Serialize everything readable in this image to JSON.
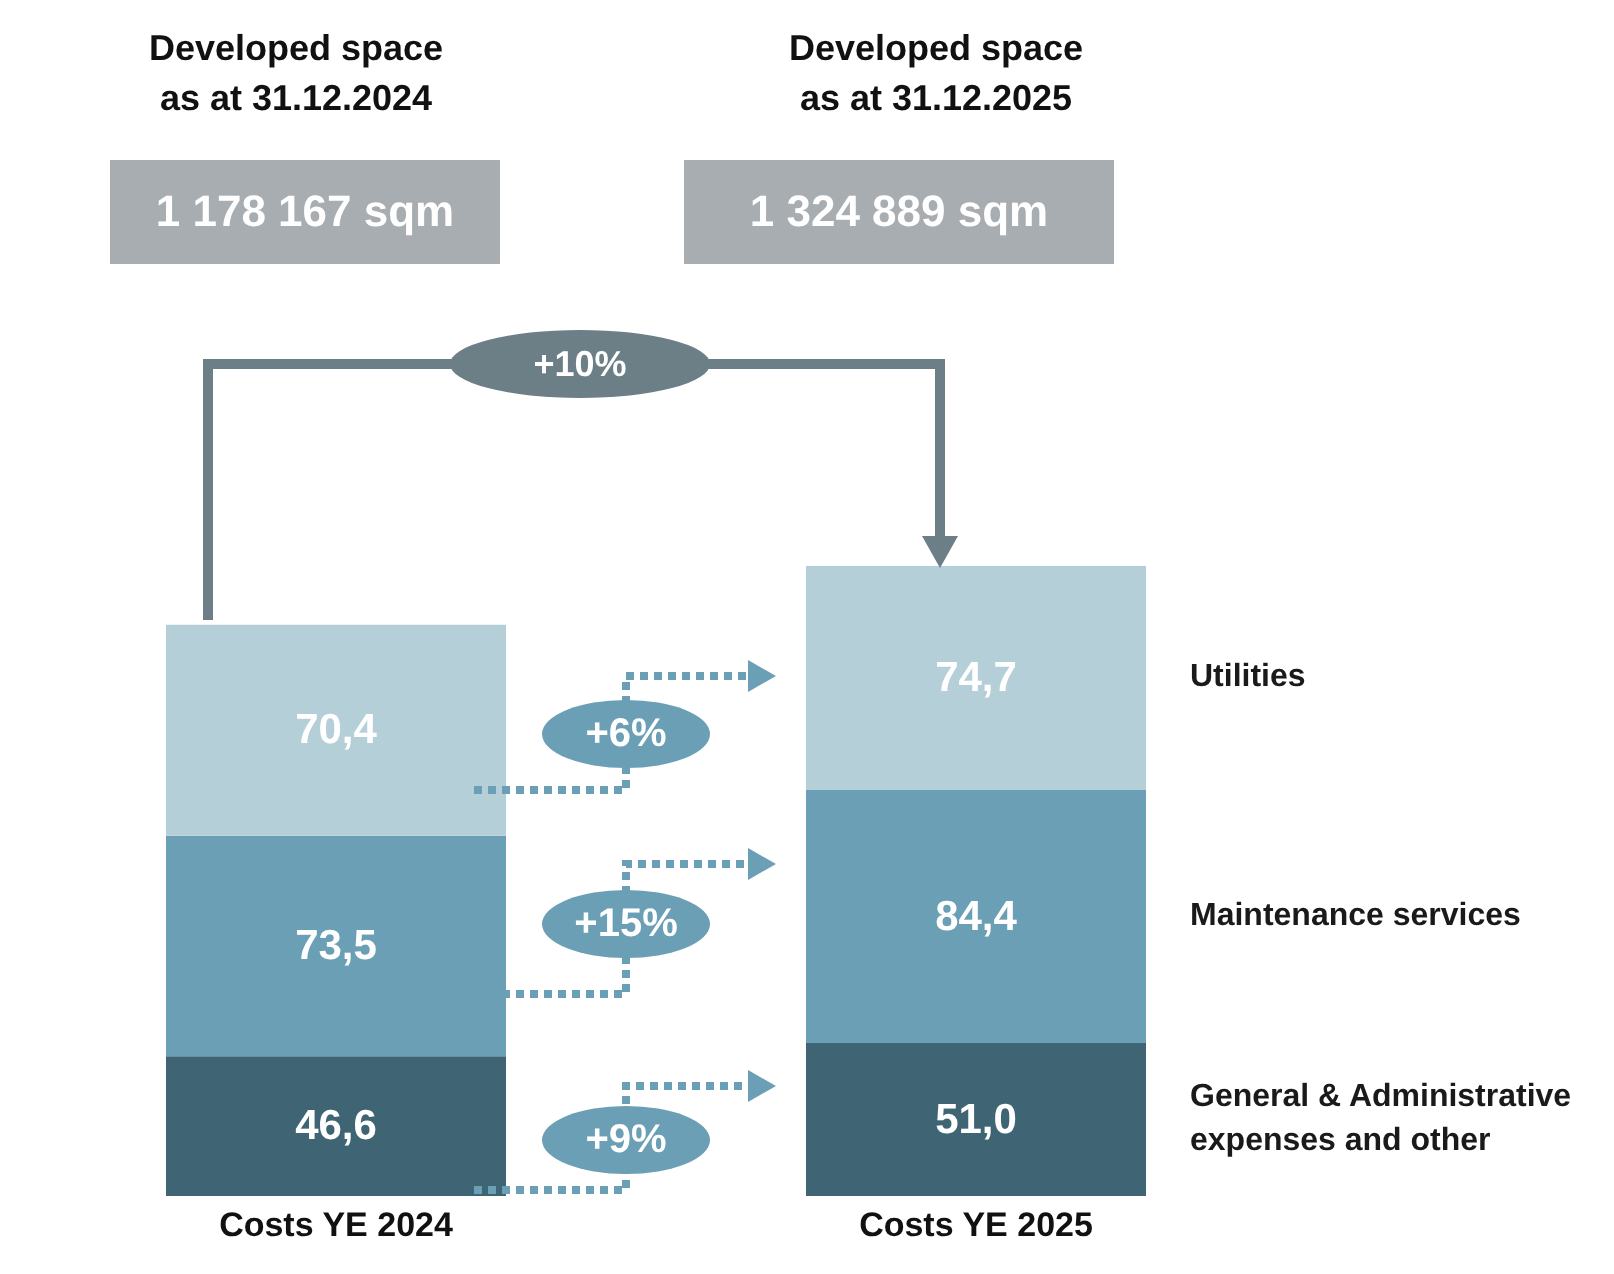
{
  "chart_data": {
    "type": "bar",
    "stacked": true,
    "categories": [
      "Costs YE 2024",
      "Costs YE 2025"
    ],
    "series": [
      {
        "name": "General & Administrative expenses and other",
        "color": "#3f6474",
        "values": [
          46.6,
          51.0
        ],
        "value_labels": [
          "46,6",
          "51,0"
        ]
      },
      {
        "name": "Maintenance services",
        "color": "#6a9fb5",
        "values": [
          73.5,
          84.4
        ],
        "value_labels": [
          "73,5",
          "84,4"
        ]
      },
      {
        "name": "Utilities",
        "color": "#b5cfd8",
        "values": [
          70.4,
          74.7
        ],
        "value_labels": [
          "70,4",
          "74,7"
        ]
      }
    ],
    "annotations": [
      "Developed space as at 31.12.2024",
      "Developed space as at 31.12.2025",
      "1 178 167 sqm",
      "1 324 889 sqm",
      "+10%",
      "+6%",
      "+15%",
      "+9%"
    ]
  }
}
